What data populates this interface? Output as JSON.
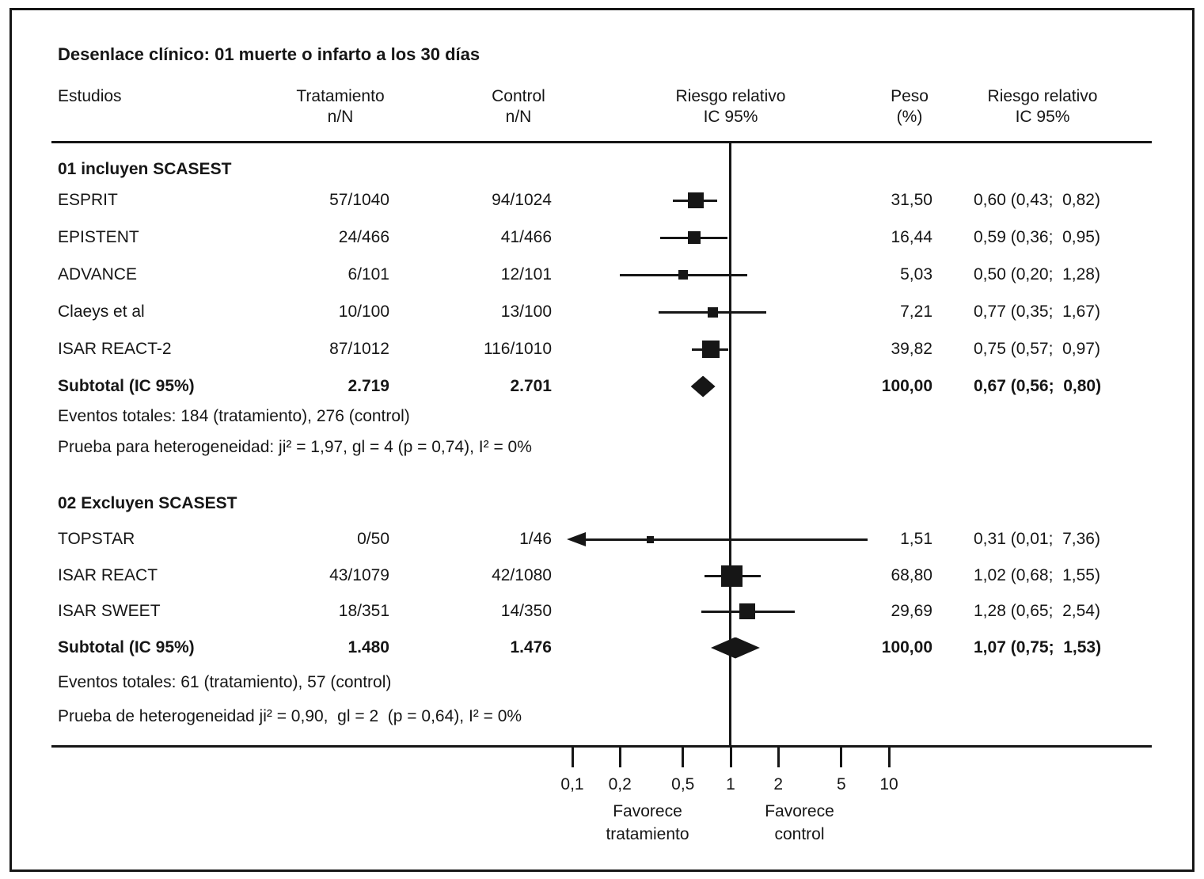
{
  "ink": "#161616",
  "header": {
    "title": "Desenlace clínico: 01 muerte o infarto a los 30 días",
    "col_estudios": "Estudios",
    "col_treatment_1": "Tratamiento",
    "col_treatment_2": "n/N",
    "col_control_1": "Control",
    "col_control_2": "n/N",
    "col_rr_plot_1": "Riesgo relativo",
    "col_rr_plot_2": "IC 95%",
    "col_weight_1": "Peso",
    "col_weight_2": "(%)",
    "col_rr_text_1": "Riesgo relativo",
    "col_rr_text_2": "IC 95%"
  },
  "chart_data": {
    "type": "forest",
    "title": "Desenlace clínico: 01 muerte o infarto a los 30 días",
    "x_scale": "log",
    "x_range": [
      0.1,
      10
    ],
    "x_ticks": [
      0.1,
      0.2,
      0.5,
      1,
      2,
      5,
      10
    ],
    "x_tick_labels": [
      "0,1",
      "0,2",
      "0,5",
      "1",
      "2",
      "5",
      "10"
    ],
    "reference_line": 1,
    "favors_left": [
      "Favorece",
      "tratamiento"
    ],
    "favors_right": [
      "Favorece",
      "control"
    ],
    "groups": [
      {
        "label": "01 incluyen SCASEST",
        "studies": [
          {
            "name": "ESPRIT",
            "treatment": "57/1040",
            "control": "94/1024",
            "weight": "31,50",
            "weight_value": 31.5,
            "rr": 0.6,
            "ci_low": 0.43,
            "ci_high": 0.82,
            "rr_text": "0,60 (0,43;  0,82)"
          },
          {
            "name": "EPISTENT",
            "treatment": "24/466",
            "control": "41/466",
            "weight": "16,44",
            "weight_value": 16.44,
            "rr": 0.59,
            "ci_low": 0.36,
            "ci_high": 0.95,
            "rr_text": "0,59 (0,36;  0,95)"
          },
          {
            "name": "ADVANCE",
            "treatment": "6/101",
            "control": "12/101",
            "weight": "5,03",
            "weight_value": 5.03,
            "rr": 0.5,
            "ci_low": 0.2,
            "ci_high": 1.28,
            "rr_text": "0,50 (0,20;  1,28)"
          },
          {
            "name": "Claeys et al",
            "treatment": "10/100",
            "control": "13/100",
            "weight": "7,21",
            "weight_value": 7.21,
            "rr": 0.77,
            "ci_low": 0.35,
            "ci_high": 1.67,
            "rr_text": "0,77 (0,35;  1,67)"
          },
          {
            "name": "ISAR REACT-2",
            "treatment": "87/1012",
            "control": "116/1010",
            "weight": "39,82",
            "weight_value": 39.82,
            "rr": 0.75,
            "ci_low": 0.57,
            "ci_high": 0.97,
            "rr_text": "0,75 (0,57;  0,97)"
          }
        ],
        "subtotal": {
          "name": "Subtotal (IC 95%)",
          "treatment": "2.719",
          "control": "2.701",
          "weight": "100,00",
          "rr": 0.67,
          "ci_low": 0.56,
          "ci_high": 0.8,
          "rr_text": "0,67 (0,56;  0,80)"
        },
        "notes": [
          "Eventos totales: 184 (tratamiento), 276 (control)",
          "Prueba para heterogeneidad: ji² = 1,97, gl = 4 (p = 0,74), I² = 0%"
        ]
      },
      {
        "label": "02 Excluyen SCASEST",
        "studies": [
          {
            "name": "TOPSTAR",
            "treatment": "0/50",
            "control": "1/46",
            "weight": "1,51",
            "weight_value": 1.51,
            "rr": 0.31,
            "ci_low": 0.01,
            "ci_high": 7.36,
            "rr_text": "0,31 (0,01;  7,36)",
            "clip_left_arrow": true
          },
          {
            "name": "ISAR REACT",
            "treatment": "43/1079",
            "control": "42/1080",
            "weight": "68,80",
            "weight_value": 68.8,
            "rr": 1.02,
            "ci_low": 0.68,
            "ci_high": 1.55,
            "rr_text": "1,02 (0,68;  1,55)"
          },
          {
            "name": "ISAR SWEET",
            "treatment": "18/351",
            "control": "14/350",
            "weight": "29,69",
            "weight_value": 29.69,
            "rr": 1.28,
            "ci_low": 0.65,
            "ci_high": 2.54,
            "rr_text": "1,28 (0,65;  2,54)"
          }
        ],
        "subtotal": {
          "name": "Subtotal (IC 95%)",
          "treatment": "1.480",
          "control": "1.476",
          "weight": "100,00",
          "rr": 1.07,
          "ci_low": 0.75,
          "ci_high": 1.53,
          "rr_text": "1,07 (0,75;  1,53)"
        },
        "notes": [
          "Eventos totales: 61 (tratamiento), 57 (control)",
          "Prueba de heterogeneidad ji² = 0,90,  gl = 2  (p = 0,64), I² = 0%"
        ]
      }
    ]
  }
}
